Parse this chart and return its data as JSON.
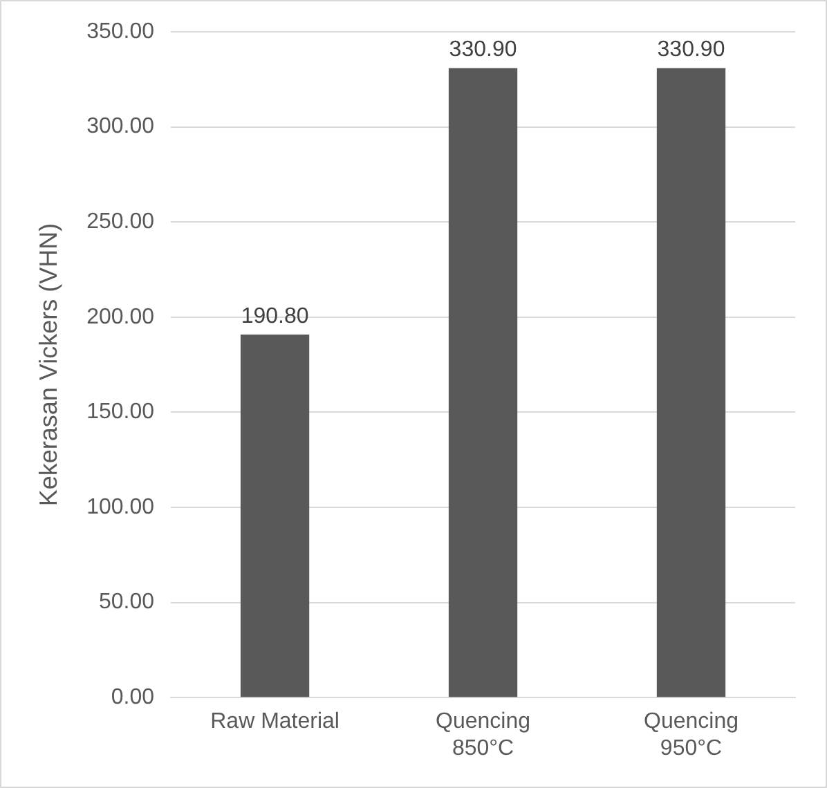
{
  "chart_data": {
    "type": "bar",
    "ylabel": "Kekerasan Vickers (VHN)",
    "categories": [
      "Raw Material",
      "Quencing 850°C",
      "Quencing 950°C"
    ],
    "values": [
      190.8,
      330.9,
      330.9
    ],
    "color": "#595959",
    "value_labels": [
      "190.80",
      "330.90",
      "330.90"
    ],
    "ylim": [
      0,
      350
    ],
    "yticks": [
      {
        "value": 0,
        "label": "0.00"
      },
      {
        "value": 50,
        "label": "50.00"
      },
      {
        "value": 100,
        "label": "100.00"
      },
      {
        "value": 150,
        "label": "150.00"
      },
      {
        "value": 200,
        "label": "200.00"
      },
      {
        "value": 250,
        "label": "250.00"
      },
      {
        "value": 300,
        "label": "300.00"
      },
      {
        "value": 350,
        "label": "350.00"
      }
    ],
    "grid": "y",
    "legend": false
  }
}
